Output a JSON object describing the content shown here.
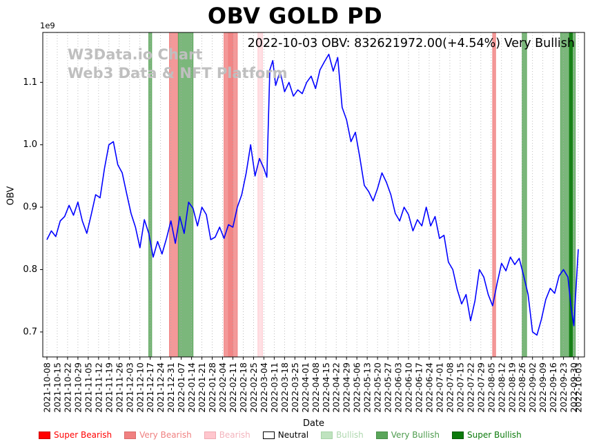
{
  "subtitle": "2022-10-03 OBV: 832621972.00(+4.54%) Very Bullish",
  "watermark": {
    "line1": "W3Data.io Chart",
    "line2": "Web3 Data & NFT Platform"
  },
  "chart_data": {
    "type": "line",
    "title": "OBV GOLD PD",
    "xlabel": "Date",
    "ylabel": "OBV",
    "y_scale": "1e9",
    "ylim": [
      0.66,
      1.18
    ],
    "grid": "vertical-dotted",
    "y_ticks": [
      0.7,
      0.8,
      0.9,
      1.0,
      1.1
    ],
    "x_ticks": [
      "2021-10-08",
      "2021-10-15",
      "2021-10-22",
      "2021-10-29",
      "2021-11-05",
      "2021-11-12",
      "2021-11-19",
      "2021-11-26",
      "2021-12-03",
      "2021-12-10",
      "2021-12-17",
      "2021-12-24",
      "2021-12-31",
      "2022-01-07",
      "2022-01-14",
      "2022-01-21",
      "2022-01-28",
      "2022-02-04",
      "2022-02-11",
      "2022-02-18",
      "2022-02-25",
      "2022-03-04",
      "2022-03-11",
      "2022-03-18",
      "2022-03-25",
      "2022-04-01",
      "2022-04-08",
      "2022-04-15",
      "2022-04-22",
      "2022-04-29",
      "2022-05-06",
      "2022-05-13",
      "2022-05-20",
      "2022-05-27",
      "2022-06-03",
      "2022-06-10",
      "2022-06-17",
      "2022-06-24",
      "2022-07-01",
      "2022-07-08",
      "2022-07-15",
      "2022-07-22",
      "2022-07-29",
      "2022-08-05",
      "2022-08-12",
      "2022-08-19",
      "2022-08-26",
      "2022-09-02",
      "2022-09-09",
      "2022-09-16",
      "2022-09-23",
      "2022-09-30",
      "2022-10-03"
    ],
    "series": [
      {
        "name": "OBV",
        "color": "#0000ff",
        "points": [
          [
            "2021-10-08",
            0.848
          ],
          [
            "2021-10-11",
            0.862
          ],
          [
            "2021-10-14",
            0.853
          ],
          [
            "2021-10-17",
            0.878
          ],
          [
            "2021-10-20",
            0.885
          ],
          [
            "2021-10-23",
            0.903
          ],
          [
            "2021-10-26",
            0.887
          ],
          [
            "2021-10-29",
            0.908
          ],
          [
            "2021-11-01",
            0.878
          ],
          [
            "2021-11-04",
            0.858
          ],
          [
            "2021-11-07",
            0.888
          ],
          [
            "2021-11-10",
            0.92
          ],
          [
            "2021-11-13",
            0.915
          ],
          [
            "2021-11-16",
            0.962
          ],
          [
            "2021-11-19",
            1.0
          ],
          [
            "2021-11-22",
            1.005
          ],
          [
            "2021-11-25",
            0.968
          ],
          [
            "2021-11-28",
            0.955
          ],
          [
            "2021-12-01",
            0.922
          ],
          [
            "2021-12-04",
            0.89
          ],
          [
            "2021-12-07",
            0.868
          ],
          [
            "2021-12-10",
            0.835
          ],
          [
            "2021-12-13",
            0.88
          ],
          [
            "2021-12-16",
            0.858
          ],
          [
            "2021-12-19",
            0.82
          ],
          [
            "2021-12-22",
            0.845
          ],
          [
            "2021-12-25",
            0.825
          ],
          [
            "2021-12-28",
            0.85
          ],
          [
            "2021-12-31",
            0.878
          ],
          [
            "2022-01-03",
            0.842
          ],
          [
            "2022-01-06",
            0.885
          ],
          [
            "2022-01-09",
            0.858
          ],
          [
            "2022-01-12",
            0.908
          ],
          [
            "2022-01-15",
            0.898
          ],
          [
            "2022-01-18",
            0.87
          ],
          [
            "2022-01-21",
            0.9
          ],
          [
            "2022-01-24",
            0.888
          ],
          [
            "2022-01-27",
            0.848
          ],
          [
            "2022-01-30",
            0.852
          ],
          [
            "2022-02-02",
            0.868
          ],
          [
            "2022-02-05",
            0.85
          ],
          [
            "2022-02-08",
            0.872
          ],
          [
            "2022-02-11",
            0.868
          ],
          [
            "2022-02-14",
            0.9
          ],
          [
            "2022-02-17",
            0.92
          ],
          [
            "2022-02-20",
            0.955
          ],
          [
            "2022-02-23",
            1.0
          ],
          [
            "2022-02-26",
            0.95
          ],
          [
            "2022-03-01",
            0.978
          ],
          [
            "2022-03-04",
            0.962
          ],
          [
            "2022-03-06",
            0.948
          ],
          [
            "2022-03-08",
            1.12
          ],
          [
            "2022-03-10",
            1.135
          ],
          [
            "2022-03-12",
            1.095
          ],
          [
            "2022-03-15",
            1.118
          ],
          [
            "2022-03-18",
            1.085
          ],
          [
            "2022-03-21",
            1.1
          ],
          [
            "2022-03-24",
            1.078
          ],
          [
            "2022-03-27",
            1.088
          ],
          [
            "2022-03-30",
            1.082
          ],
          [
            "2022-04-02",
            1.1
          ],
          [
            "2022-04-05",
            1.11
          ],
          [
            "2022-04-08",
            1.09
          ],
          [
            "2022-04-11",
            1.12
          ],
          [
            "2022-04-14",
            1.133
          ],
          [
            "2022-04-17",
            1.145
          ],
          [
            "2022-04-20",
            1.118
          ],
          [
            "2022-04-23",
            1.14
          ],
          [
            "2022-04-26",
            1.06
          ],
          [
            "2022-04-29",
            1.04
          ],
          [
            "2022-05-02",
            1.005
          ],
          [
            "2022-05-05",
            1.02
          ],
          [
            "2022-05-08",
            0.98
          ],
          [
            "2022-05-11",
            0.935
          ],
          [
            "2022-05-14",
            0.925
          ],
          [
            "2022-05-17",
            0.91
          ],
          [
            "2022-05-20",
            0.93
          ],
          [
            "2022-05-23",
            0.955
          ],
          [
            "2022-05-26",
            0.94
          ],
          [
            "2022-05-29",
            0.92
          ],
          [
            "2022-06-01",
            0.89
          ],
          [
            "2022-06-04",
            0.878
          ],
          [
            "2022-06-07",
            0.9
          ],
          [
            "2022-06-10",
            0.888
          ],
          [
            "2022-06-13",
            0.862
          ],
          [
            "2022-06-16",
            0.88
          ],
          [
            "2022-06-19",
            0.87
          ],
          [
            "2022-06-22",
            0.9
          ],
          [
            "2022-06-25",
            0.87
          ],
          [
            "2022-06-28",
            0.885
          ],
          [
            "2022-07-01",
            0.85
          ],
          [
            "2022-07-04",
            0.855
          ],
          [
            "2022-07-07",
            0.812
          ],
          [
            "2022-07-10",
            0.8
          ],
          [
            "2022-07-13",
            0.768
          ],
          [
            "2022-07-16",
            0.745
          ],
          [
            "2022-07-19",
            0.76
          ],
          [
            "2022-07-22",
            0.718
          ],
          [
            "2022-07-25",
            0.75
          ],
          [
            "2022-07-28",
            0.8
          ],
          [
            "2022-07-31",
            0.788
          ],
          [
            "2022-08-03",
            0.76
          ],
          [
            "2022-08-06",
            0.742
          ],
          [
            "2022-08-09",
            0.778
          ],
          [
            "2022-08-12",
            0.81
          ],
          [
            "2022-08-15",
            0.798
          ],
          [
            "2022-08-18",
            0.82
          ],
          [
            "2022-08-21",
            0.808
          ],
          [
            "2022-08-24",
            0.818
          ],
          [
            "2022-08-27",
            0.79
          ],
          [
            "2022-08-30",
            0.76
          ],
          [
            "2022-09-02",
            0.7
          ],
          [
            "2022-09-05",
            0.695
          ],
          [
            "2022-09-08",
            0.72
          ],
          [
            "2022-09-11",
            0.752
          ],
          [
            "2022-09-14",
            0.77
          ],
          [
            "2022-09-17",
            0.762
          ],
          [
            "2022-09-20",
            0.79
          ],
          [
            "2022-09-23",
            0.8
          ],
          [
            "2022-09-26",
            0.788
          ],
          [
            "2022-09-28",
            0.742
          ],
          [
            "2022-09-30",
            0.71
          ],
          [
            "2022-10-03",
            0.8326
          ]
        ]
      }
    ],
    "bands": [
      {
        "from": "2021-12-16",
        "to": "2021-12-18",
        "signal": "Very Bullish"
      },
      {
        "from": "2021-12-30",
        "to": "2022-01-05",
        "signal": "Very Bearish"
      },
      {
        "from": "2022-01-05",
        "to": "2022-01-15",
        "signal": "Very Bullish"
      },
      {
        "from": "2022-02-05",
        "to": "2022-02-14",
        "signal": "Very Bearish"
      },
      {
        "from": "2022-02-08",
        "to": "2022-02-11",
        "signal": "Very Bearish"
      },
      {
        "from": "2022-02-28",
        "to": "2022-03-03",
        "signal": "Bearish"
      },
      {
        "from": "2022-08-06",
        "to": "2022-08-08",
        "signal": "Very Bearish"
      },
      {
        "from": "2022-08-26",
        "to": "2022-08-29",
        "signal": "Very Bullish"
      },
      {
        "from": "2022-09-21",
        "to": "2022-10-01",
        "signal": "Very Bullish"
      },
      {
        "from": "2022-09-27",
        "to": "2022-09-29",
        "signal": "Super Bullish"
      }
    ],
    "signal_colors": {
      "Super Bearish": "#ff0000",
      "Very Bearish": "#f08080",
      "Bearish": "#ffc6cd",
      "Neutral": "#ffffff",
      "Bullish": "#bfe3bf",
      "Very Bullish": "#5aa55a",
      "Super Bullish": "#0b7a0b"
    },
    "latest": {
      "date": "2022-10-03",
      "obv": 832621972.0,
      "change_pct": 4.54,
      "signal": "Very Bullish"
    }
  },
  "legend": [
    {
      "label": "Super Bearish",
      "swatch": "#ff0000",
      "edge": "#cc0000",
      "text_color": "#ff0000"
    },
    {
      "label": "Very Bearish",
      "swatch": "#f08080",
      "edge": "#d96b6b",
      "text_color": "#ef7f7f"
    },
    {
      "label": "Bearish",
      "swatch": "#ffc6cd",
      "edge": "#efaab3",
      "text_color": "#f3b3bc"
    },
    {
      "label": "Neutral",
      "swatch": "#ffffff",
      "edge": "#000000",
      "text_color": "#000000"
    },
    {
      "label": "Bullish",
      "swatch": "#bfe3bf",
      "edge": "#a6d3a6",
      "text_color": "#aed7ae"
    },
    {
      "label": "Very Bullish",
      "swatch": "#5aa55a",
      "edge": "#468f46",
      "text_color": "#4c9b4c"
    },
    {
      "label": "Super Bullish",
      "swatch": "#0b7a0b",
      "edge": "#075907",
      "text_color": "#0b7a0b"
    }
  ]
}
